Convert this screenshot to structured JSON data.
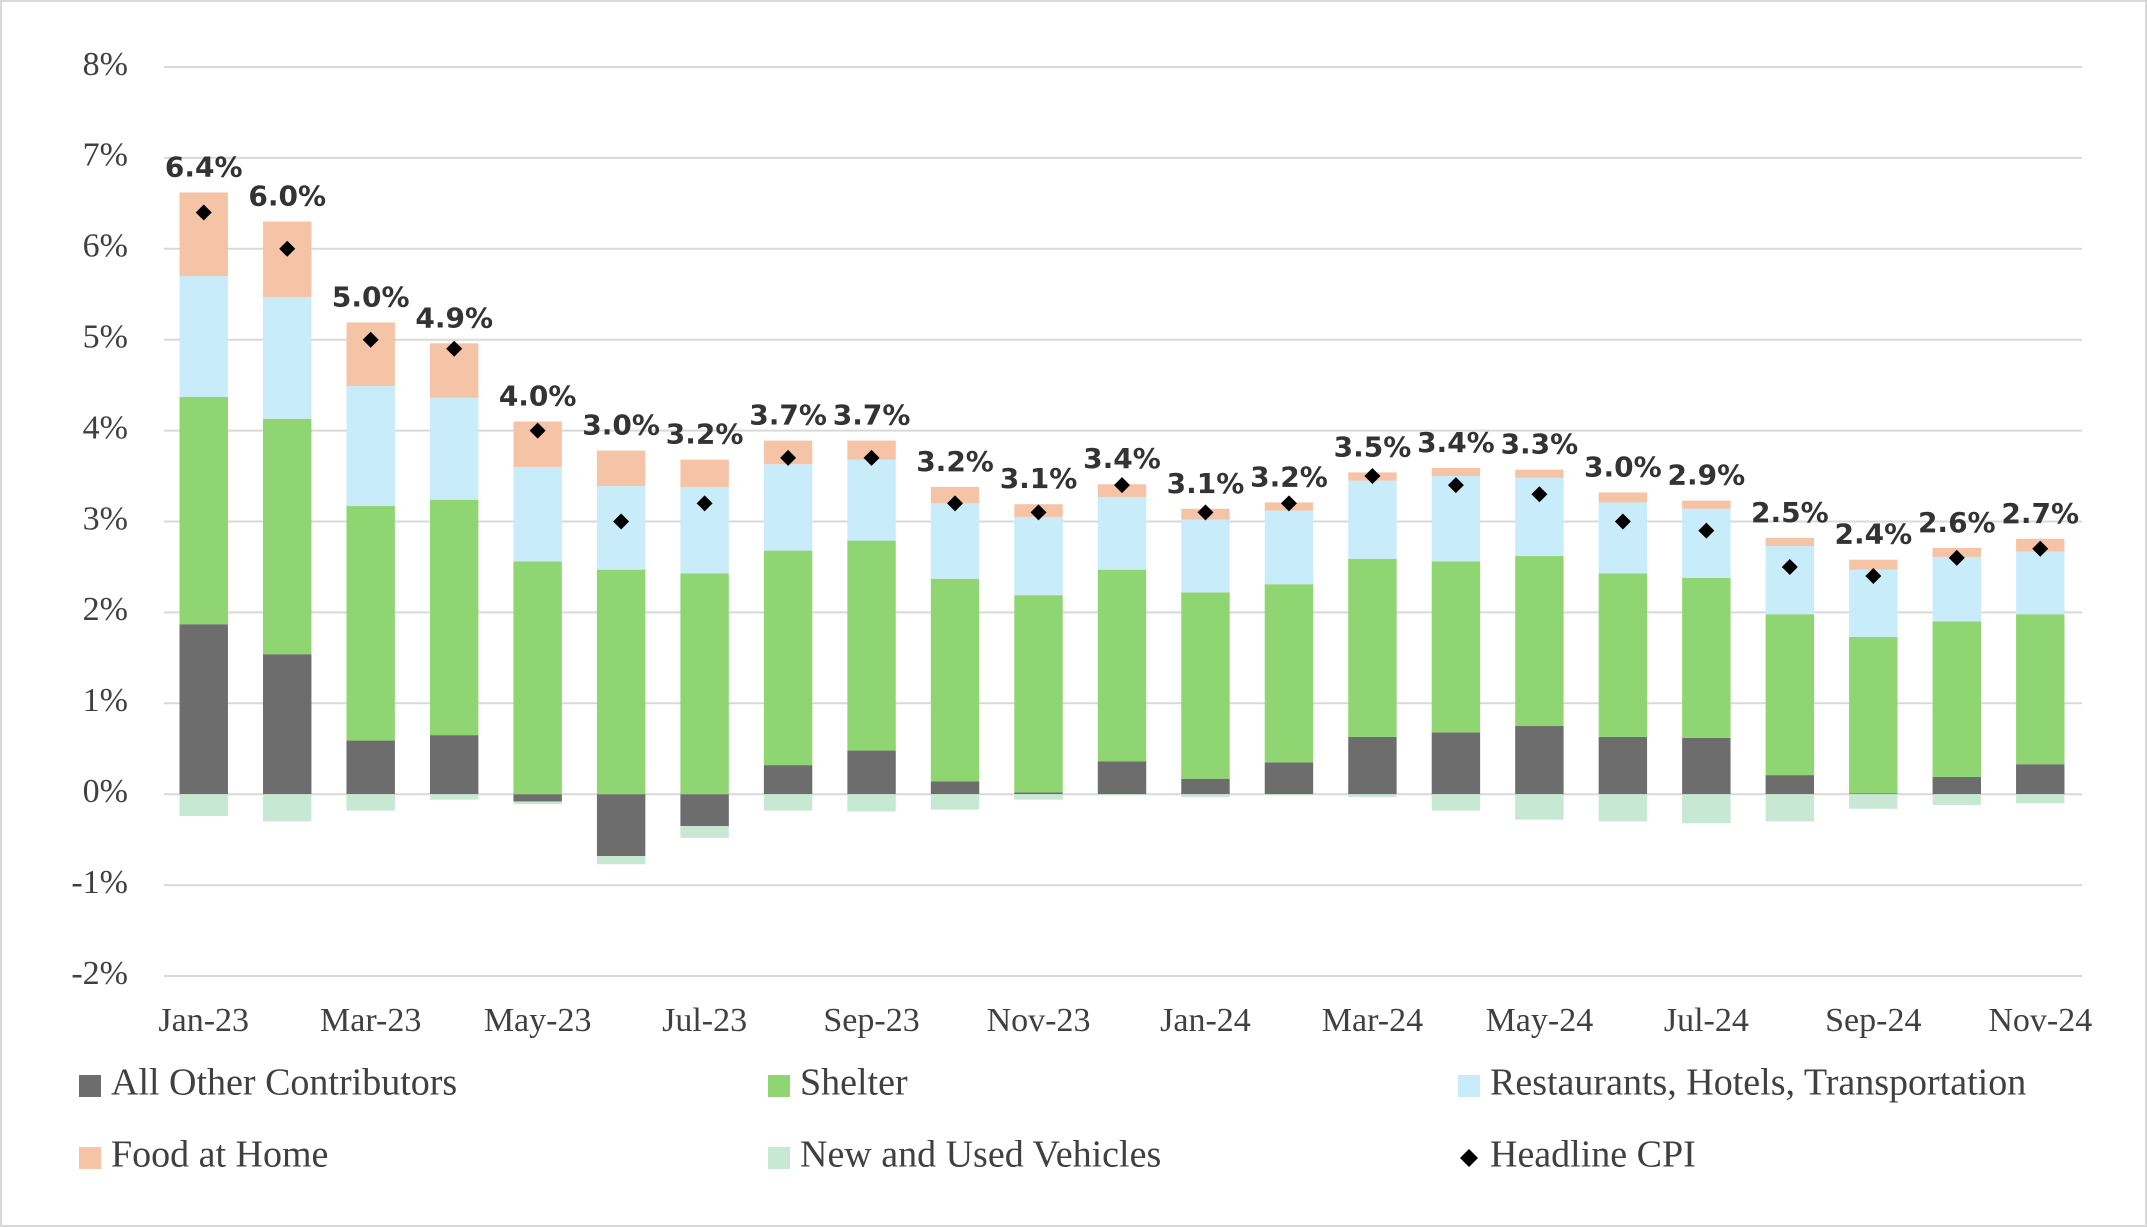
{
  "chart_data": {
    "type": "bar",
    "stacked": true,
    "categories": [
      "Jan-23",
      null,
      "Mar-23",
      null,
      "May-23",
      null,
      "Jul-23",
      null,
      "Sep-23",
      null,
      "Nov-23",
      null,
      "Jan-24",
      null,
      "Mar-24",
      null,
      "May-24",
      null,
      "Jul-24",
      null,
      "Sep-24",
      null,
      "Nov-24"
    ],
    "series": [
      {
        "name": "All Other Contributors",
        "color": "#6d6d6d",
        "values": [
          1.87,
          1.54,
          0.59,
          0.65,
          -0.08,
          -0.68,
          -0.35,
          0.32,
          0.48,
          0.14,
          0.02,
          0.36,
          0.17,
          0.35,
          0.63,
          0.68,
          0.75,
          0.63,
          0.62,
          0.21,
          0.01,
          0.19,
          0.33
        ]
      },
      {
        "name": "Shelter",
        "color": "#8fd672",
        "values": [
          2.5,
          2.59,
          2.58,
          2.59,
          2.56,
          2.47,
          2.43,
          2.36,
          2.31,
          2.23,
          2.17,
          2.11,
          2.05,
          1.96,
          1.96,
          1.88,
          1.87,
          1.8,
          1.76,
          1.77,
          1.72,
          1.71,
          1.65
        ]
      },
      {
        "name": "Restaurants, Hotels, Transportation",
        "color": "#c9ecfa",
        "values": [
          1.33,
          1.34,
          1.32,
          1.12,
          1.04,
          0.92,
          0.95,
          0.95,
          0.89,
          0.83,
          0.86,
          0.8,
          0.8,
          0.81,
          0.86,
          0.94,
          0.86,
          0.78,
          0.76,
          0.75,
          0.74,
          0.71,
          0.69
        ]
      },
      {
        "name": "Food at Home",
        "color": "#f5c4a7",
        "values": [
          0.92,
          0.83,
          0.7,
          0.6,
          0.5,
          0.39,
          0.3,
          0.26,
          0.21,
          0.18,
          0.14,
          0.14,
          0.12,
          0.09,
          0.09,
          0.09,
          0.09,
          0.11,
          0.09,
          0.09,
          0.11,
          0.1,
          0.14
        ]
      },
      {
        "name": "New and Used Vehicles",
        "color": "#c7e8d2",
        "values": [
          -0.24,
          -0.3,
          -0.18,
          -0.06,
          -0.03,
          -0.09,
          -0.13,
          -0.18,
          -0.19,
          -0.17,
          -0.06,
          -0.01,
          -0.03,
          -0.01,
          -0.03,
          -0.18,
          -0.28,
          -0.3,
          -0.32,
          -0.3,
          -0.16,
          -0.12,
          -0.1
        ]
      },
      {
        "name": "Headline CPI",
        "type": "scatter",
        "color": "#000000",
        "values": [
          6.4,
          6.0,
          5.0,
          4.9,
          4.0,
          3.0,
          3.2,
          3.7,
          3.7,
          3.2,
          3.1,
          3.4,
          3.1,
          3.2,
          3.5,
          3.4,
          3.3,
          3.0,
          2.9,
          2.5,
          2.4,
          2.6,
          2.7
        ],
        "value_labels": [
          "6.4%",
          "6.0%",
          "5.0%",
          "4.9%",
          "4.0%",
          "3.0%",
          "3.2%",
          "3.7%",
          "3.7%",
          "3.2%",
          "3.1%",
          "3.4%",
          "3.1%",
          "3.2%",
          "3.5%",
          "3.4%",
          "3.3%",
          "3.0%",
          "2.9%",
          "2.5%",
          "2.4%",
          "2.6%",
          "2.7%"
        ]
      }
    ],
    "ylim": [
      -2,
      8
    ],
    "yticks": [
      {
        "value": -2,
        "label": "-2%"
      },
      {
        "value": -1,
        "label": "-1%"
      },
      {
        "value": 0,
        "label": "0%"
      },
      {
        "value": 1,
        "label": "1%"
      },
      {
        "value": 2,
        "label": "2%"
      },
      {
        "value": 3,
        "label": "3%"
      },
      {
        "value": 4,
        "label": "4%"
      },
      {
        "value": 5,
        "label": "5%"
      },
      {
        "value": 6,
        "label": "6%"
      },
      {
        "value": 7,
        "label": "7%"
      },
      {
        "value": 8,
        "label": "8%"
      }
    ],
    "grid": true,
    "legend": "bottom"
  }
}
